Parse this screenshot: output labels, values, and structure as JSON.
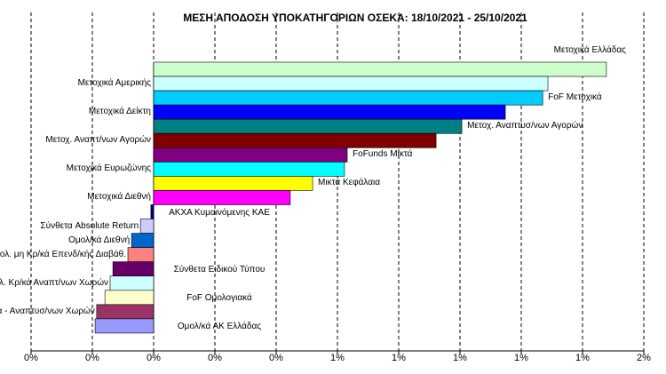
{
  "chart_data": {
    "type": "bar",
    "orientation": "horizontal",
    "title": "ΜΕΣΗ ΑΠΟΔΟΣΗ ΥΠΟΚΑΤΗΓΟΡΙΩΝ  ΟΣΕΚΑ:  18/10/2021  - 25/10/2021",
    "categories": [
      "Μετοχικά Ελλάδας",
      "Μετοχικά Αμερικής",
      "FoF Μετοχικά",
      "Μετοχικά Δείκτη",
      "Μετοχ. Αναπτυσ/νων Αγορών",
      "Μετοχ. Αναπτ/νων Αγορών",
      "FoFunds Μικτά",
      "Μετοχικά Ευρωζώνης",
      "Μικτά Κεφάλαια",
      "Μετοχικά Διεθνή",
      "ΑΚΧΑ Κυμαινόμενης ΚΑΕ",
      "Σύνθετα Absolute Return",
      "Ομολ/κά Διεθνή",
      "Ομολ. μη Κρ/κά Επενδ/κής Διαβάθ.",
      "Σύνθετα Ειδικού Τύπου",
      "Ομολ. Κρ/κά Αναπτ/νων Χωρών",
      "FoF Ομολογιακά",
      "Ομολ. Κρ/κα - Αναπτυσ/νων Χωρών",
      "Ομολ/κά ΑΚ Ελλάδας"
    ],
    "values": [
      1.478,
      1.287,
      1.27,
      1.148,
      1.006,
      0.922,
      0.632,
      0.623,
      0.519,
      0.446,
      -0.009,
      -0.043,
      -0.072,
      -0.084,
      -0.133,
      -0.142,
      -0.159,
      -0.186,
      -0.191
    ],
    "colors": [
      "#ccffcc",
      "#ccffff",
      "#00ccff",
      "#0000ff",
      "#008080",
      "#800000",
      "#800080",
      "#00ffff",
      "#ffff00",
      "#ff00ff",
      "#000080",
      "#ccccff",
      "#0066cc",
      "#ff8080",
      "#660066",
      "#ccffff",
      "#ffffcc",
      "#993366",
      "#9999ff"
    ],
    "xlim": [
      -0.4,
      1.6
    ],
    "xticks": [
      {
        "value": -0.4,
        "label": "0%"
      },
      {
        "value": -0.2,
        "label": "0%"
      },
      {
        "value": 0,
        "label": "0%"
      },
      {
        "value": 0.2,
        "label": "0%"
      },
      {
        "value": 0.4,
        "label": "0%"
      },
      {
        "value": 0.6,
        "label": "1%"
      },
      {
        "value": 0.8,
        "label": "1%"
      },
      {
        "value": 1.0,
        "label": "1%"
      },
      {
        "value": 1.2,
        "label": "1%"
      },
      {
        "value": 1.4,
        "label": "1%"
      },
      {
        "value": 1.6,
        "label": "2%"
      }
    ],
    "grid": true
  }
}
